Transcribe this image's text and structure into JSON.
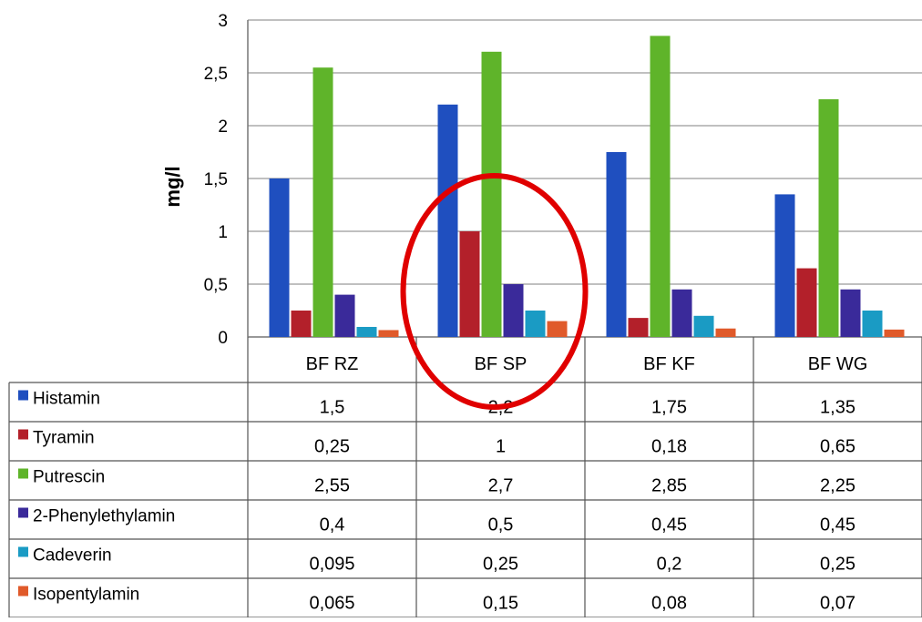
{
  "chart_data": {
    "type": "bar",
    "title": "",
    "xlabel": "",
    "ylabel": "mg/l",
    "ylim": [
      0,
      3
    ],
    "yticks": [
      "0",
      "0,5",
      "1",
      "1,5",
      "2",
      "2,5",
      "3"
    ],
    "grid": true,
    "legend": "left-table",
    "categories": [
      "BF RZ",
      "BF SP",
      "BF KF",
      "BF WG"
    ],
    "series": [
      {
        "name": "Histamin",
        "color": "#1f4fbf",
        "values": [
          1.5,
          2.2,
          1.75,
          1.35
        ],
        "labels": [
          "1,5",
          "2,2",
          "1,75",
          "1,35"
        ]
      },
      {
        "name": "Tyramin",
        "color": "#b3202a",
        "values": [
          0.25,
          1,
          0.18,
          0.65
        ],
        "labels": [
          "0,25",
          "1",
          "0,18",
          "0,65"
        ]
      },
      {
        "name": "Putrescin",
        "color": "#5fb42a",
        "values": [
          2.55,
          2.7,
          2.85,
          2.25
        ],
        "labels": [
          "2,55",
          "2,7",
          "2,85",
          "2,25"
        ]
      },
      {
        "name": "2-Phenylethylamin",
        "color": "#3a2a9a",
        "values": [
          0.4,
          0.5,
          0.45,
          0.45
        ],
        "labels": [
          "0,4",
          "0,5",
          "0,45",
          "0,45"
        ]
      },
      {
        "name": "Cadeverin",
        "color": "#1a9bc4",
        "values": [
          0.095,
          0.25,
          0.2,
          0.25
        ],
        "labels": [
          "0,095",
          "0,25",
          "0,2",
          "0,25"
        ]
      },
      {
        "name": "Isopentylamin",
        "color": "#e05a2a",
        "values": [
          0.065,
          0.15,
          0.08,
          0.07
        ],
        "labels": [
          "0,065",
          "0,15",
          "0,08",
          "0,07"
        ]
      }
    ],
    "annotation": {
      "shape": "ellipse",
      "target": "BF SP",
      "color": "#e00000"
    }
  }
}
